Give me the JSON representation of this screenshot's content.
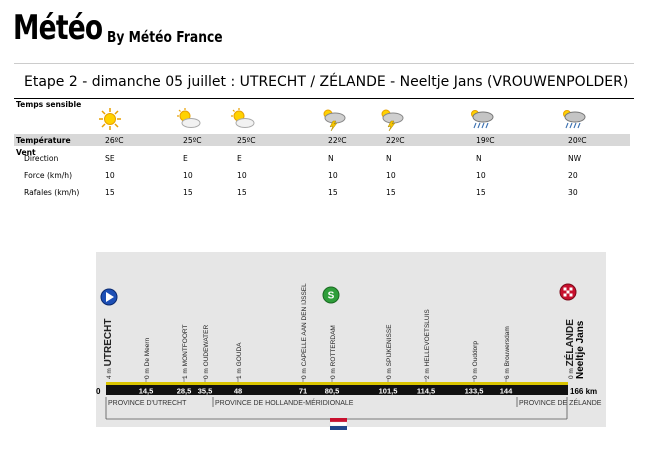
{
  "header": {
    "title": "Météo",
    "byline": "By Météo France"
  },
  "stage": {
    "heading": "Etape 2 - dimanche 05 juillet  : UTRECHT / ZÉLANDE - Neeltje Jans (VROUWENPOLDER)"
  },
  "weather": {
    "labels": {
      "sky": "Temps sensible",
      "temperature": "Température",
      "wind": "Vent",
      "direction": "Direction",
      "force": "Force (km/h)",
      "gusts": "Rafales (km/h)"
    },
    "columns": [
      {
        "icon": "sun-icon",
        "temp": "26ºC",
        "dir": "SE",
        "force": "10",
        "gusts": "15"
      },
      {
        "icon": "sun-cloud-icon",
        "temp": "25ºC",
        "dir": "E",
        "force": "10",
        "gusts": "15"
      },
      {
        "icon": "sun-cloud-icon",
        "temp": "25ºC",
        "dir": "E",
        "force": "10",
        "gusts": "15"
      },
      {
        "icon": "storm-icon",
        "temp": "22ºC",
        "dir": "N",
        "force": "10",
        "gusts": "15"
      },
      {
        "icon": "storm-icon",
        "temp": "22ºC",
        "dir": "N",
        "force": "10",
        "gusts": "15"
      },
      {
        "icon": "rain-icon",
        "temp": "19ºC",
        "dir": "N",
        "force": "10",
        "gusts": "15"
      },
      {
        "icon": "rain-icon",
        "temp": "20ºC",
        "dir": "NW",
        "force": "20",
        "gusts": "30"
      }
    ]
  },
  "profile": {
    "start_km": "0",
    "end_km": "166 km",
    "places": [
      {
        "alt": "4 m",
        "name": "UTRECHT",
        "km": "",
        "major": true
      },
      {
        "alt": "0 m",
        "name": "De Meern",
        "km": "14,5"
      },
      {
        "alt": "1 m",
        "name": "MONTFOORT",
        "km": "28,5"
      },
      {
        "alt": "0 m",
        "name": "OUDEWATER",
        "km": "35,5"
      },
      {
        "alt": "1 m",
        "name": "GOUDA",
        "km": "48"
      },
      {
        "alt": "0 m",
        "name": "CAPELLE AAN DEN IJSSEL",
        "km": "71"
      },
      {
        "alt": "0 m",
        "name": "ROTTERDAM",
        "km": "80,5"
      },
      {
        "alt": "0 m",
        "name": "SPIJKENISSE",
        "km": "101,5"
      },
      {
        "alt": "2 m",
        "name": "HELLEVOETSLUIS",
        "km": "114,5"
      },
      {
        "alt": "0 m",
        "name": "Ouddorp",
        "km": "133,5"
      },
      {
        "alt": "6 m",
        "name": "Brouwersdam",
        "km": "144"
      },
      {
        "alt": "0 m",
        "name": "ZÉLANDE",
        "sub": "Neeltje Jans",
        "km": "",
        "major": true
      }
    ],
    "sprint_marker": "S",
    "provinces": [
      "PROVINCE D'UTRECHT",
      "PROVINCE DE HOLLANDE-MÉRIDIONALE",
      "PROVINCE DE ZÉLANDE"
    ]
  }
}
